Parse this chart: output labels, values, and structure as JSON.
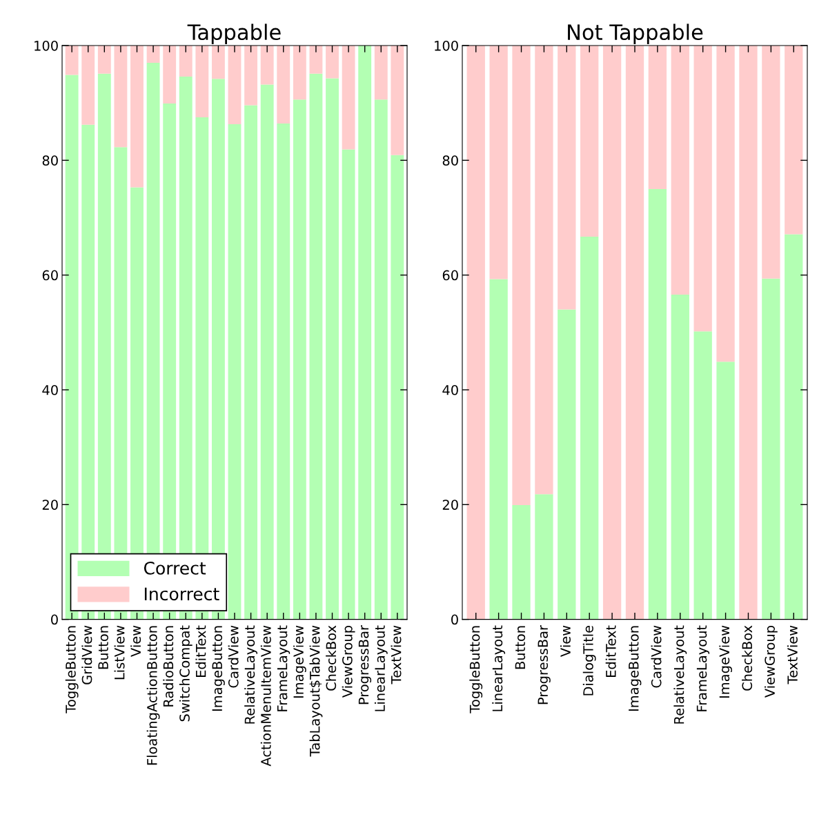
{
  "chart_data": [
    {
      "type": "bar",
      "title": "Tappable",
      "stacked": true,
      "legend": "bottom left",
      "grid": false,
      "categories": [
        "ToggleButton",
        "GridView",
        "Button",
        "ListView",
        "View",
        "FloatingActionButton",
        "RadioButton",
        "SwitchCompat",
        "EditText",
        "ImageButton",
        "CardView",
        "RelativeLayout",
        "ActionMenuItemView",
        "FrameLayout",
        "ImageView",
        "TabLayout$TabView",
        "CheckBox",
        "ViewGroup",
        "ProgressBar",
        "LinearLayout",
        "TextView"
      ],
      "series": [
        {
          "name": "Correct",
          "color": "#b3ffb3",
          "values": [
            94.9,
            86.2,
            95.1,
            82.3,
            75.3,
            97.0,
            89.9,
            94.6,
            87.5,
            94.2,
            86.3,
            89.6,
            93.2,
            86.4,
            90.6,
            95.1,
            94.3,
            81.9,
            100,
            90.6,
            80.9
          ]
        },
        {
          "name": "Incorrect",
          "color": "#ffcccc",
          "values": [
            5.1,
            13.8,
            4.9,
            17.7,
            24.7,
            3.0,
            10.1,
            5.4,
            12.5,
            5.8,
            13.7,
            10.4,
            6.8,
            13.6,
            9.4,
            4.9,
            5.7,
            18.1,
            0,
            9.4,
            19.1
          ]
        }
      ],
      "ylim": [
        0,
        100
      ],
      "yticks": [
        0,
        20,
        40,
        60,
        80,
        100
      ]
    },
    {
      "type": "bar",
      "title": "Not Tappable",
      "stacked": true,
      "grid": false,
      "categories": [
        "ToggleButton",
        "LinearLayout",
        "Button",
        "ProgressBar",
        "View",
        "DialogTitle",
        "EditText",
        "ImageButton",
        "CardView",
        "RelativeLayout",
        "FrameLayout",
        "ImageView",
        "CheckBox",
        "ViewGroup",
        "TextView"
      ],
      "series": [
        {
          "color": "#b3ffb3",
          "values": [
            0,
            59.3,
            19.9,
            21.8,
            54.0,
            66.7,
            0,
            0,
            75.0,
            56.6,
            50.2,
            44.9,
            0,
            59.4,
            67.1
          ]
        },
        {
          "color": "#ffcccc",
          "values": [
            100,
            40.7,
            80.1,
            78.2,
            46.0,
            33.3,
            100,
            100,
            25.0,
            43.4,
            49.8,
            55.1,
            100,
            40.6,
            32.9
          ]
        }
      ],
      "ylim": [
        0,
        100
      ],
      "yticks": [
        0,
        20,
        40,
        60,
        80,
        100
      ]
    }
  ]
}
